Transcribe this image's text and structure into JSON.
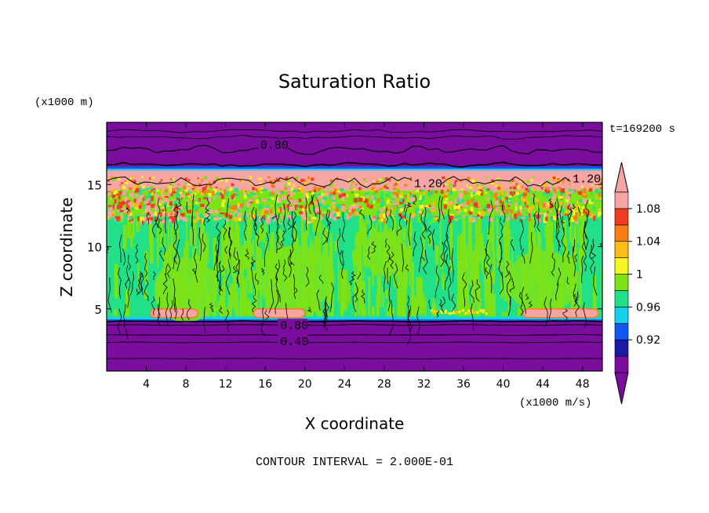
{
  "chart_data": {
    "type": "heatmap",
    "title": "Saturation Ratio",
    "xlabel": "X coordinate",
    "ylabel": "Z coordinate",
    "x_unit": "(x1000 m/s)",
    "y_unit": "(x1000 m)",
    "time_label": "t=169200 s",
    "footer": "CONTOUR INTERVAL = 2.000E-01",
    "xlim": [
      0,
      50
    ],
    "ylim": [
      0,
      20
    ],
    "x_ticks": [
      4,
      8,
      12,
      16,
      20,
      24,
      28,
      32,
      36,
      40,
      44,
      48
    ],
    "y_ticks": [
      5,
      10,
      15
    ],
    "contour_labels": [
      {
        "text": "0.80",
        "x": 15.5,
        "z": 18.2
      },
      {
        "text": "1.20",
        "x": 31.0,
        "z": 15.1
      },
      {
        "text": "1.20",
        "x": 47.0,
        "z": 15.5
      },
      {
        "text": "0.80",
        "x": 17.5,
        "z": 3.7
      },
      {
        "text": "0.40",
        "x": 17.5,
        "z": 2.4
      }
    ],
    "colorbar": {
      "labels": [
        "1.08",
        "1.04",
        "1",
        "0.96",
        "0.92"
      ],
      "colors": [
        "#7a0d9e",
        "#1a1aa6",
        "#1059f0",
        "#16d0ee",
        "#22e088",
        "#7de316",
        "#f6f622",
        "#fbbd16",
        "#f87d12",
        "#f03c22",
        "#f6a5a5"
      ]
    },
    "layers": [
      {
        "name": "top",
        "z": [
          16.3,
          20
        ],
        "value": "<0.92",
        "color": "#7a0d9e"
      },
      {
        "name": "supersaturated band",
        "z": [
          14.5,
          16.3
        ],
        "value": ">1.10",
        "color": "#f6a5a5"
      },
      {
        "name": "mixed band",
        "z": [
          12.5,
          14.5
        ],
        "value": "1.00-1.10",
        "color": "#7de316"
      },
      {
        "name": "middle",
        "z": [
          4.0,
          12.5
        ],
        "value": "0.98-1.02",
        "color": "#22e088"
      },
      {
        "name": "bottom",
        "z": [
          0,
          4.0
        ],
        "value": "<0.92",
        "color": "#7a0d9e"
      }
    ]
  }
}
